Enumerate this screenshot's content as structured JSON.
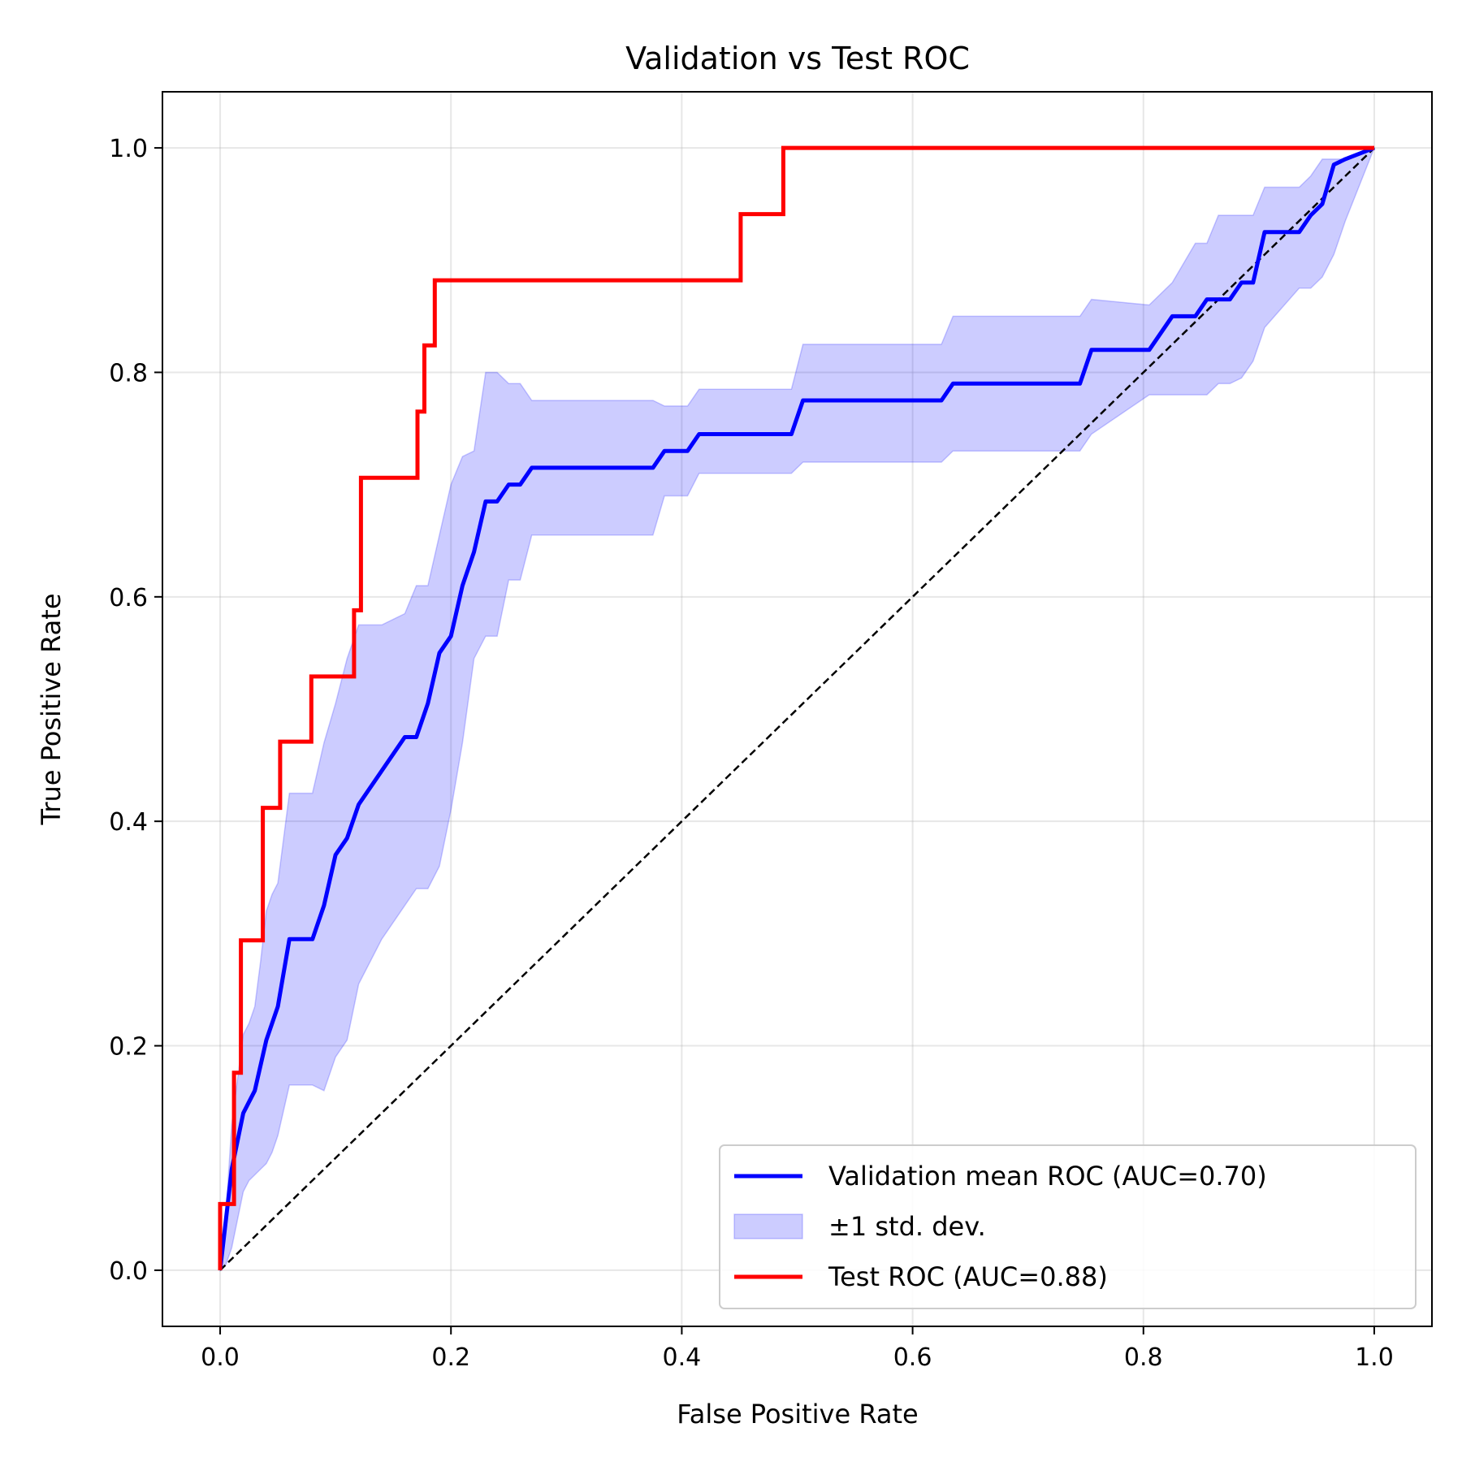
{
  "chart_data": {
    "type": "line",
    "title": "Validation vs Test ROC",
    "xlabel": "False Positive Rate",
    "ylabel": "True Positive Rate",
    "xlim": [
      -0.05,
      1.05
    ],
    "ylim": [
      -0.05,
      1.05
    ],
    "xticks": [
      0.0,
      0.2,
      0.4,
      0.6,
      0.8,
      1.0
    ],
    "yticks": [
      0.0,
      0.2,
      0.4,
      0.6,
      0.8,
      1.0
    ],
    "tick_labels": [
      "0.0",
      "0.2",
      "0.4",
      "0.6",
      "0.8",
      "1.0"
    ],
    "grid": true,
    "legend_position": "lower-right",
    "colors": {
      "validation": "#0000ff",
      "band": "#0000ff",
      "test": "#ff0000",
      "chance": "#000000"
    },
    "legend": [
      {
        "kind": "line",
        "color": "#0000ff",
        "label": "Validation mean ROC (AUC=0.70)"
      },
      {
        "kind": "band",
        "color": "#0000ff",
        "label": "±1 std. dev."
      },
      {
        "kind": "line",
        "color": "#ff0000",
        "label": "Test ROC (AUC=0.88)"
      }
    ],
    "series": [
      {
        "name": "Validation mean ROC (AUC=0.70)",
        "x": [
          0.0,
          0.01,
          0.02,
          0.03,
          0.04,
          0.05,
          0.06,
          0.08,
          0.09,
          0.1,
          0.11,
          0.12,
          0.14,
          0.16,
          0.17,
          0.18,
          0.19,
          0.2,
          0.21,
          0.22,
          0.23,
          0.24,
          0.25,
          0.26,
          0.27,
          0.375,
          0.385,
          0.405,
          0.415,
          0.495,
          0.505,
          0.625,
          0.635,
          0.745,
          0.755,
          0.805,
          0.825,
          0.845,
          0.855,
          0.865,
          0.875,
          0.885,
          0.895,
          0.905,
          0.935,
          0.945,
          0.955,
          0.965,
          0.975,
          1.0
        ],
        "y": [
          0.0,
          0.09,
          0.14,
          0.16,
          0.205,
          0.235,
          0.295,
          0.295,
          0.325,
          0.37,
          0.385,
          0.415,
          0.445,
          0.475,
          0.475,
          0.505,
          0.55,
          0.565,
          0.61,
          0.64,
          0.685,
          0.685,
          0.7,
          0.7,
          0.715,
          0.715,
          0.73,
          0.73,
          0.745,
          0.745,
          0.775,
          0.775,
          0.79,
          0.79,
          0.82,
          0.82,
          0.85,
          0.85,
          0.865,
          0.865,
          0.865,
          0.88,
          0.88,
          0.925,
          0.925,
          0.94,
          0.95,
          0.985,
          0.99,
          1.0
        ]
      },
      {
        "name": "±1 std. dev.",
        "x": [
          0.0,
          0.005,
          0.01,
          0.02,
          0.025,
          0.03,
          0.035,
          0.04,
          0.045,
          0.05,
          0.06,
          0.08,
          0.09,
          0.1,
          0.11,
          0.12,
          0.14,
          0.16,
          0.17,
          0.18,
          0.19,
          0.2,
          0.21,
          0.22,
          0.23,
          0.24,
          0.25,
          0.26,
          0.27,
          0.375,
          0.385,
          0.405,
          0.415,
          0.495,
          0.505,
          0.625,
          0.635,
          0.745,
          0.755,
          0.805,
          0.825,
          0.845,
          0.855,
          0.865,
          0.875,
          0.885,
          0.895,
          0.905,
          0.935,
          0.945,
          0.955,
          0.965,
          0.975,
          1.0
        ],
        "y_upper": [
          0.0,
          0.05,
          0.13,
          0.21,
          0.22,
          0.235,
          0.275,
          0.32,
          0.335,
          0.345,
          0.425,
          0.425,
          0.47,
          0.505,
          0.545,
          0.575,
          0.575,
          0.585,
          0.61,
          0.61,
          0.655,
          0.7,
          0.725,
          0.73,
          0.8,
          0.8,
          0.79,
          0.79,
          0.775,
          0.775,
          0.77,
          0.77,
          0.785,
          0.785,
          0.825,
          0.825,
          0.85,
          0.85,
          0.865,
          0.86,
          0.88,
          0.915,
          0.915,
          0.94,
          0.94,
          0.94,
          0.94,
          0.965,
          0.965,
          0.975,
          0.99,
          0.99,
          0.99,
          1.0
        ],
        "y_lower": [
          0.0,
          0.005,
          0.02,
          0.07,
          0.08,
          0.085,
          0.09,
          0.095,
          0.105,
          0.12,
          0.165,
          0.165,
          0.16,
          0.19,
          0.205,
          0.255,
          0.295,
          0.325,
          0.34,
          0.34,
          0.36,
          0.41,
          0.47,
          0.545,
          0.565,
          0.565,
          0.615,
          0.615,
          0.655,
          0.655,
          0.69,
          0.69,
          0.71,
          0.71,
          0.72,
          0.72,
          0.73,
          0.73,
          0.745,
          0.78,
          0.78,
          0.78,
          0.78,
          0.79,
          0.79,
          0.795,
          0.81,
          0.84,
          0.875,
          0.875,
          0.885,
          0.905,
          0.935,
          1.0
        ]
      },
      {
        "name": "Test ROC (AUC=0.88)",
        "x": [
          0.0,
          0.0,
          0.012,
          0.012,
          0.018,
          0.018,
          0.037,
          0.037,
          0.052,
          0.052,
          0.079,
          0.079,
          0.116,
          0.116,
          0.122,
          0.122,
          0.171,
          0.171,
          0.177,
          0.177,
          0.186,
          0.186,
          0.451,
          0.451,
          0.488,
          0.488,
          1.0
        ],
        "y": [
          0.0,
          0.059,
          0.059,
          0.176,
          0.176,
          0.294,
          0.294,
          0.412,
          0.412,
          0.471,
          0.471,
          0.529,
          0.529,
          0.588,
          0.588,
          0.706,
          0.706,
          0.765,
          0.765,
          0.824,
          0.824,
          0.882,
          0.882,
          0.941,
          0.941,
          1.0,
          1.0
        ]
      },
      {
        "x": [
          0.0,
          1.0
        ],
        "y": [
          0.0,
          1.0
        ]
      }
    ]
  }
}
